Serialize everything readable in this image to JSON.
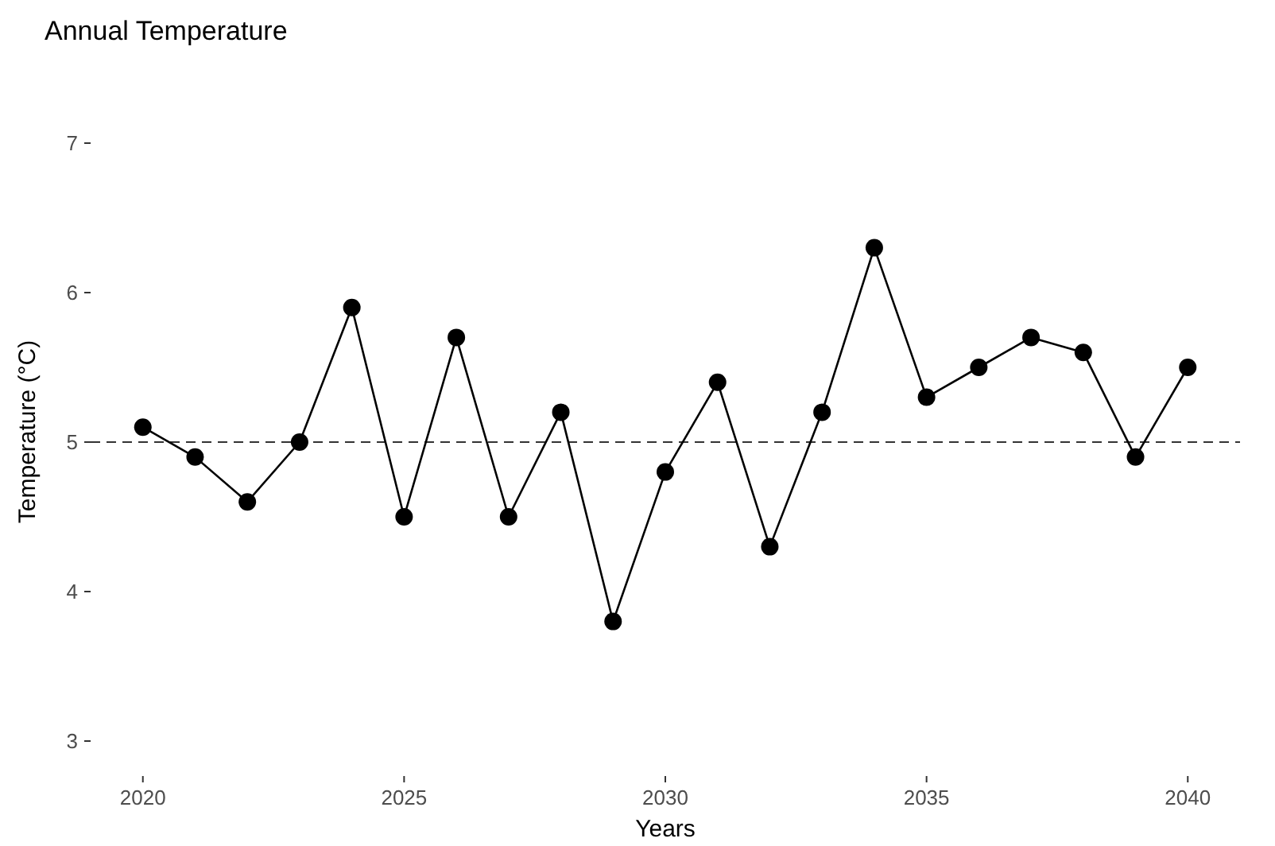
{
  "chart_data": {
    "type": "line",
    "title": "Annual Temperature",
    "xlabel": "Years",
    "ylabel": "Temperature (°C)",
    "x": [
      2020,
      2021,
      2022,
      2023,
      2024,
      2025,
      2026,
      2027,
      2028,
      2029,
      2030,
      2031,
      2032,
      2033,
      2034,
      2035,
      2036,
      2037,
      2038,
      2039,
      2040
    ],
    "series": [
      {
        "color": "#000000",
        "values": [
          5.1,
          4.9,
          4.6,
          5.0,
          5.9,
          4.5,
          5.7,
          4.5,
          5.2,
          3.8,
          4.8,
          5.4,
          4.3,
          5.2,
          6.3,
          5.3,
          5.5,
          5.7,
          5.6,
          4.9,
          5.5
        ]
      }
    ],
    "xlim": [
      2019,
      2041
    ],
    "xticks": [
      2020,
      2025,
      2030,
      2035,
      2040
    ],
    "ylim": [
      3,
      7
    ],
    "yticks": [
      3,
      4,
      5,
      6,
      7
    ],
    "ref_lines": [
      {
        "axis": "y",
        "value": 5,
        "line_style": "dashed",
        "color": "#333333"
      }
    ],
    "grid": false,
    "marker": "circle",
    "line_style": "solid"
  }
}
